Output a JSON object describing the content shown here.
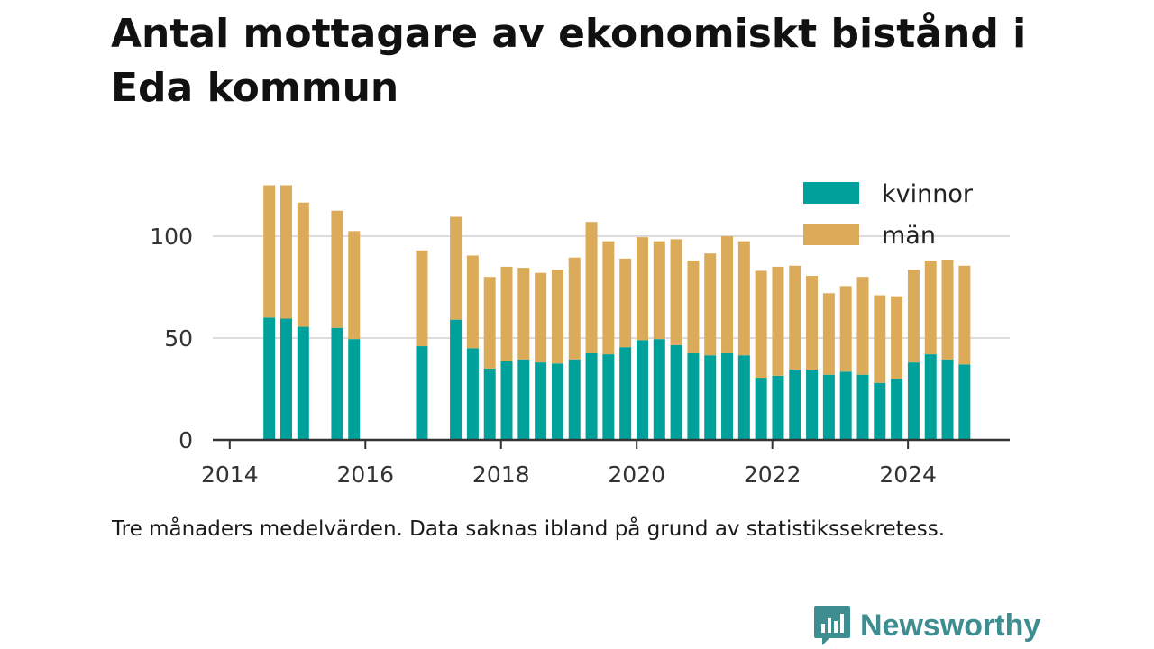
{
  "title": "Antal mottagare av ekonomiskt bistånd i Eda kommun",
  "caption": "Tre månaders medelvärden. Data saknas ibland på grund av statistikssekretess.",
  "brand": "Newsworthy",
  "colors": {
    "kvinnor": "#00a19a",
    "man": "#dcab5a",
    "grid": "#dcdcdc",
    "axis": "#333333",
    "brand": "#3d8d91"
  },
  "chart_data": {
    "type": "bar",
    "stacked": true,
    "x_type": "date",
    "xlim": [
      "2013-10",
      "2025-07"
    ],
    "ylim": [
      0,
      125
    ],
    "yticks": [
      0,
      50,
      100
    ],
    "xticks": [
      "2014",
      "2016",
      "2018",
      "2020",
      "2022",
      "2024"
    ],
    "grid": true,
    "legend_position": "top-right",
    "x": [
      "2014-08",
      "2014-11",
      "2015-02",
      "2015-08",
      "2015-11",
      "2016-11",
      "2017-05",
      "2017-08",
      "2017-11",
      "2018-02",
      "2018-05",
      "2018-08",
      "2018-11",
      "2019-02",
      "2019-05",
      "2019-08",
      "2019-11",
      "2020-02",
      "2020-05",
      "2020-08",
      "2020-11",
      "2021-02",
      "2021-05",
      "2021-08",
      "2021-11",
      "2022-02",
      "2022-05",
      "2022-08",
      "2022-11",
      "2023-02",
      "2023-05",
      "2023-08",
      "2023-11",
      "2024-02",
      "2024-05",
      "2024-08",
      "2024-11"
    ],
    "series": [
      {
        "name": "kvinnor",
        "values": [
          60,
          59.5,
          55.5,
          55,
          49.5,
          46,
          59,
          45,
          35,
          38.5,
          39.5,
          38,
          37.5,
          39.5,
          42.5,
          42,
          45.5,
          49,
          49.5,
          46.5,
          42.5,
          41.5,
          42.5,
          41.5,
          30.5,
          31.5,
          34.5,
          34.5,
          32,
          33.5,
          32,
          28,
          30,
          38,
          42,
          39.5,
          37
        ]
      },
      {
        "name": "män",
        "values": [
          65,
          65.5,
          61,
          57.5,
          53,
          47,
          50.5,
          45.5,
          45,
          46.5,
          45,
          44,
          46,
          50,
          64.5,
          55.5,
          43.5,
          50.5,
          48,
          52,
          45.5,
          50,
          57.5,
          56,
          52.5,
          53.5,
          51,
          46,
          40,
          42,
          48,
          43,
          40.5,
          45.5,
          46,
          49,
          48.5
        ]
      }
    ]
  }
}
